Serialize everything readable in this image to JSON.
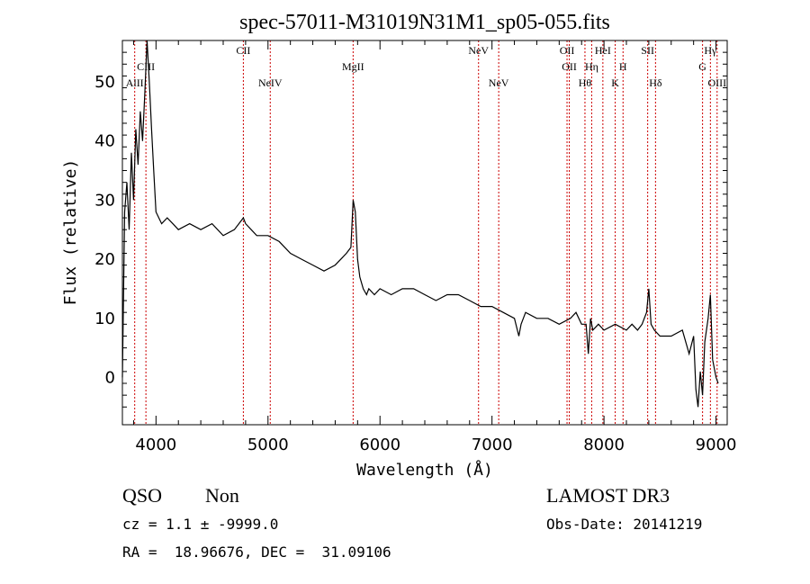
{
  "chart_data": {
    "type": "line",
    "title": "spec-57011-M31019N31M1_sp05-055.fits",
    "xlabel": "Wavelength (Å)",
    "ylabel": "Flux (relative)",
    "xlim": [
      3700,
      9100
    ],
    "ylim": [
      -8,
      57
    ],
    "xticks": [
      4000,
      5000,
      6000,
      7000,
      8000,
      9000
    ],
    "yticks": [
      0,
      10,
      20,
      30,
      40,
      50
    ],
    "series": [
      {
        "name": "spectrum",
        "x": [
          3700,
          3720,
          3740,
          3760,
          3780,
          3800,
          3820,
          3840,
          3860,
          3880,
          3900,
          3920,
          3940,
          3960,
          3980,
          4000,
          4050,
          4100,
          4150,
          4200,
          4300,
          4400,
          4500,
          4600,
          4700,
          4780,
          4800,
          4850,
          4900,
          5000,
          5100,
          5200,
          5300,
          5400,
          5500,
          5600,
          5650,
          5700,
          5740,
          5760,
          5780,
          5800,
          5820,
          5850,
          5880,
          5900,
          5950,
          6000,
          6100,
          6200,
          6300,
          6400,
          6500,
          6600,
          6700,
          6800,
          6900,
          7000,
          7100,
          7200,
          7240,
          7260,
          7300,
          7400,
          7500,
          7600,
          7700,
          7750,
          7800,
          7840,
          7860,
          7880,
          7900,
          7950,
          8000,
          8100,
          8200,
          8250,
          8300,
          8340,
          8380,
          8400,
          8420,
          8450,
          8500,
          8600,
          8700,
          8760,
          8800,
          8820,
          8840,
          8860,
          8880,
          8900,
          8930,
          8950,
          8970,
          9000,
          9020
        ],
        "y": [
          0,
          28,
          33,
          25,
          38,
          30,
          42,
          36,
          45,
          40,
          48,
          57,
          50,
          42,
          35,
          28,
          26,
          27,
          26,
          25,
          26,
          25,
          26,
          24,
          25,
          27,
          26,
          25,
          24,
          24,
          23,
          21,
          20,
          19,
          18,
          19,
          20,
          21,
          22,
          30,
          28,
          20,
          17,
          15,
          14,
          15,
          14,
          15,
          14,
          15,
          15,
          14,
          13,
          14,
          14,
          13,
          12,
          12,
          11,
          10,
          7,
          9,
          11,
          10,
          10,
          9,
          10,
          11,
          9,
          9,
          4,
          10,
          8,
          9,
          8,
          9,
          8,
          9,
          8,
          9,
          11,
          15,
          9,
          8,
          7,
          7,
          8,
          4,
          7,
          -2,
          -5,
          1,
          -3,
          6,
          10,
          14,
          3,
          0,
          -1
        ]
      }
    ],
    "lines": [
      {
        "name": "AlII",
        "x": 3810,
        "row": 3
      },
      {
        "name": "CIII",
        "x": 3910,
        "row": 2
      },
      {
        "name": "CII",
        "x": 4780,
        "row": 1
      },
      {
        "name": "NeIV",
        "x": 5020,
        "row": 3
      },
      {
        "name": "MgII",
        "x": 5760,
        "row": 2
      },
      {
        "name": "NeV",
        "x": 6880,
        "row": 1
      },
      {
        "name": "NeV",
        "x": 7060,
        "row": 3
      },
      {
        "name": "OII",
        "x": 7670,
        "row": 1
      },
      {
        "name": "OII",
        "x": 7690,
        "row": 2
      },
      {
        "name": "Hθ",
        "x": 7830,
        "row": 3
      },
      {
        "name": "Hη",
        "x": 7890,
        "row": 2
      },
      {
        "name": "HeI",
        "x": 7990,
        "row": 1
      },
      {
        "name": "K",
        "x": 8100,
        "row": 3
      },
      {
        "name": "H",
        "x": 8170,
        "row": 2
      },
      {
        "name": "SII",
        "x": 8390,
        "row": 1
      },
      {
        "name": "Hδ",
        "x": 8460,
        "row": 3
      },
      {
        "name": "G",
        "x": 8880,
        "row": 2
      },
      {
        "name": "Hγ",
        "x": 8950,
        "row": 1
      },
      {
        "name": "OIII",
        "x": 9010,
        "row": 3
      }
    ]
  },
  "info": {
    "class": "QSO",
    "subclass": "Non",
    "survey": "LAMOST DR3",
    "cz": "cz = 1.1 ± -9999.0",
    "obs_date": "Obs-Date: 20141219",
    "coords": "RA =  18.96676, DEC =  31.09106"
  },
  "colors": {
    "spectrum": "#000000",
    "line_marker": "#cc0000",
    "axis": "#000000"
  }
}
